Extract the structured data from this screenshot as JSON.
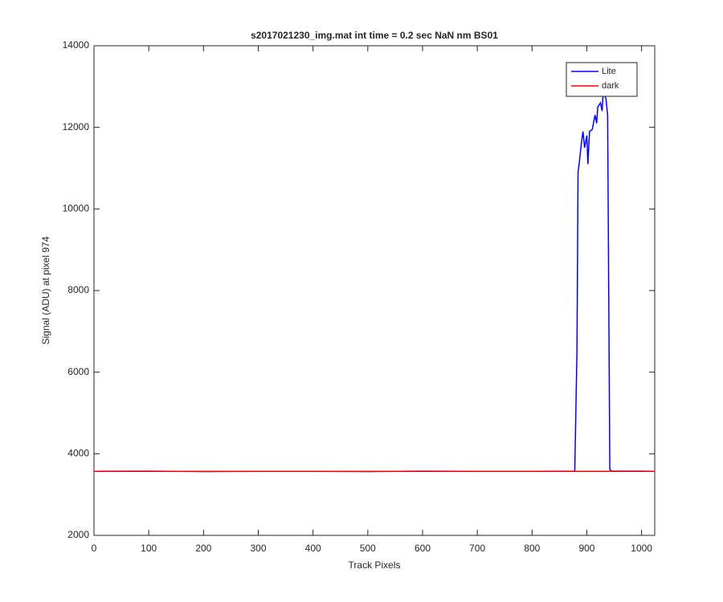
{
  "chart_data": {
    "type": "line",
    "title": "s2017021230_img.mat int time = 0.2 sec  NaN nm BS01",
    "xlabel": "Track Pixels",
    "ylabel": "Signal (ADU) at pixel 974",
    "xlim": [
      0,
      1024
    ],
    "ylim": [
      2000,
      14000
    ],
    "xticks": [
      0,
      100,
      200,
      300,
      400,
      500,
      600,
      700,
      800,
      900,
      1000
    ],
    "yticks": [
      2000,
      4000,
      6000,
      8000,
      10000,
      12000,
      14000
    ],
    "grid": false,
    "legend": "northeast",
    "series": [
      {
        "name": "Lite",
        "color": "#0000ff",
        "x": [
          0,
          100,
          200,
          300,
          400,
          500,
          600,
          700,
          800,
          878,
          882,
          884,
          886,
          890,
          893,
          896,
          900,
          902,
          905,
          910,
          915,
          918,
          920,
          925,
          928,
          930,
          932,
          935,
          938,
          940,
          942,
          945,
          1000,
          1024
        ],
        "values": [
          3570,
          3575,
          3565,
          3570,
          3570,
          3565,
          3575,
          3570,
          3570,
          3575,
          6500,
          10900,
          11100,
          11600,
          11900,
          11500,
          11800,
          11100,
          11900,
          11950,
          12300,
          12100,
          12500,
          12600,
          12400,
          12900,
          12800,
          12700,
          12300,
          8000,
          3620,
          3575,
          3575,
          3570
        ]
      },
      {
        "name": "dark",
        "color": "#ff0000",
        "x": [
          0,
          512,
          1024
        ],
        "values": [
          3570,
          3570,
          3570
        ]
      }
    ]
  }
}
